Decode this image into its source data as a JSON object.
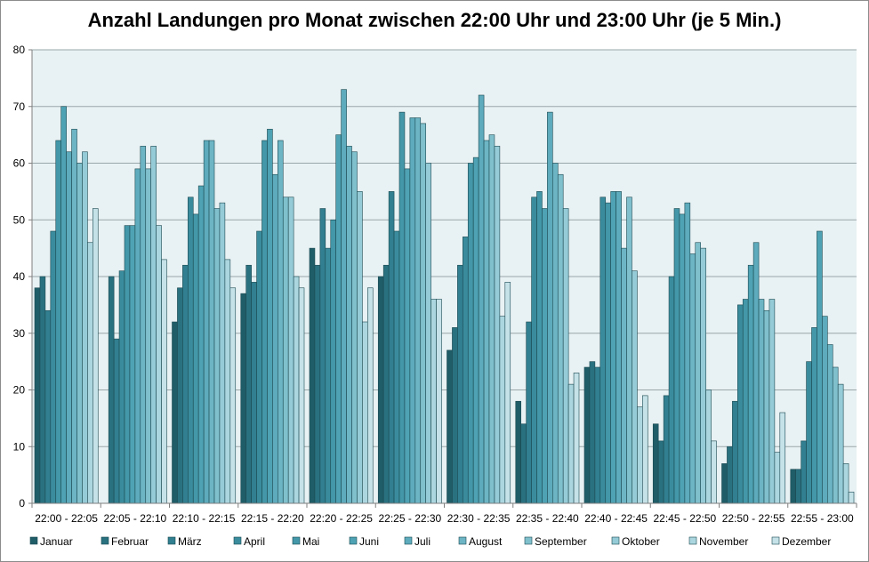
{
  "chart_data": {
    "type": "bar",
    "title": "Anzahl Landungen pro Monat zwischen 22:00 Uhr und 23:00 Uhr (je 5 Min.)",
    "xlabel": "",
    "ylabel": "",
    "ylim": [
      0,
      80
    ],
    "yticks": [
      0,
      10,
      20,
      30,
      40,
      50,
      60,
      70,
      80
    ],
    "grid": true,
    "legend_position": "bottom",
    "categories": [
      "22:00 - 22:05",
      "22:05 - 22:10",
      "22:10 - 22:15",
      "22:15 - 22:20",
      "22:20 - 22:25",
      "22:25 - 22:30",
      "22:30 - 22:35",
      "22:35 - 22:40",
      "22:40 - 22:45",
      "22:45 - 22:50",
      "22:50 - 22:55",
      "22:55 - 23:00"
    ],
    "series": [
      {
        "name": "Januar",
        "color": "#1f5d68",
        "values": [
          38,
          0,
          32,
          37,
          45,
          40,
          27,
          18,
          24,
          14,
          7,
          6
        ]
      },
      {
        "name": "Februar",
        "color": "#2a7180",
        "values": [
          40,
          40,
          38,
          42,
          42,
          42,
          31,
          14,
          25,
          11,
          10,
          6
        ]
      },
      {
        "name": "März",
        "color": "#317f90",
        "values": [
          34,
          29,
          42,
          39,
          52,
          55,
          42,
          32,
          24,
          19,
          18,
          11
        ]
      },
      {
        "name": "April",
        "color": "#3a8c9d",
        "values": [
          48,
          41,
          54,
          48,
          45,
          48,
          47,
          54,
          54,
          40,
          35,
          25
        ]
      },
      {
        "name": "Mai",
        "color": "#4397a8",
        "values": [
          64,
          49,
          51,
          64,
          50,
          69,
          60,
          55,
          53,
          52,
          36,
          31
        ]
      },
      {
        "name": "Juni",
        "color": "#4ea2b3",
        "values": [
          70,
          49,
          56,
          66,
          65,
          59,
          61,
          52,
          55,
          51,
          42,
          48
        ]
      },
      {
        "name": "Juli",
        "color": "#5dabbc",
        "values": [
          62,
          59,
          64,
          58,
          73,
          68,
          72,
          69,
          55,
          53,
          46,
          33
        ]
      },
      {
        "name": "August",
        "color": "#6db5c5",
        "values": [
          66,
          63,
          64,
          64,
          63,
          68,
          64,
          60,
          45,
          44,
          36,
          28
        ]
      },
      {
        "name": "September",
        "color": "#80c0cd",
        "values": [
          60,
          59,
          52,
          54,
          62,
          67,
          65,
          58,
          54,
          46,
          34,
          24
        ]
      },
      {
        "name": "Oktober",
        "color": "#95cbd6",
        "values": [
          62,
          63,
          53,
          54,
          55,
          60,
          63,
          52,
          41,
          45,
          36,
          21
        ]
      },
      {
        "name": "November",
        "color": "#acd6df",
        "values": [
          46,
          49,
          43,
          40,
          32,
          36,
          33,
          21,
          17,
          20,
          9,
          7
        ]
      },
      {
        "name": "Dezember",
        "color": "#c5e2e8",
        "values": [
          52,
          43,
          38,
          38,
          38,
          36,
          39,
          23,
          19,
          11,
          16,
          2
        ]
      }
    ]
  }
}
